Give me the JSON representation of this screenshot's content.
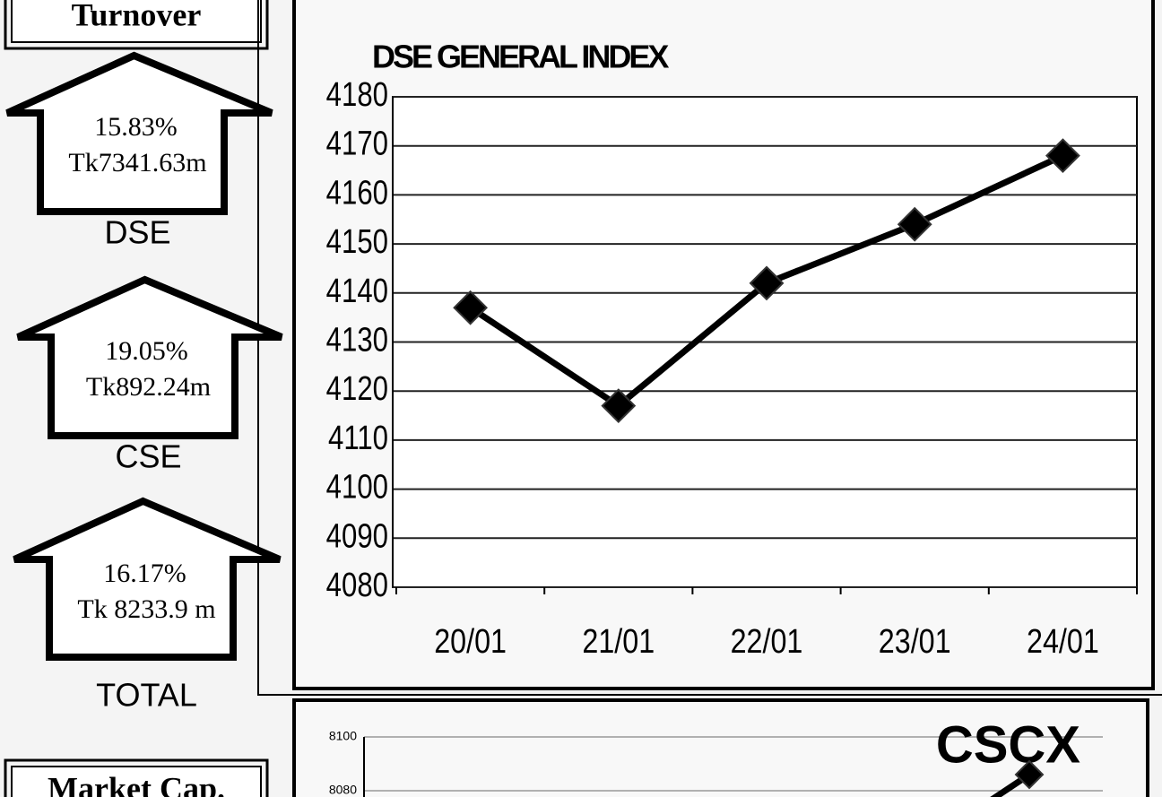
{
  "turnover": {
    "title": "Turnover",
    "items": [
      {
        "percent": "15.83%",
        "amount": "Tk7341.63m",
        "label": "DSE"
      },
      {
        "percent": "19.05%",
        "amount": "Tk892.24m",
        "label": "CSE"
      },
      {
        "percent": "16.17%",
        "amount": "Tk 8233.9 m",
        "label": "TOTAL"
      }
    ],
    "next_heading": "Market Cap."
  },
  "chart_data": [
    {
      "type": "line",
      "title": "DSE GENERAL INDEX",
      "categories": [
        "20/01",
        "21/01",
        "22/01",
        "23/01",
        "24/01"
      ],
      "values": [
        4137,
        4117,
        4142,
        4154,
        4168
      ],
      "color": "#000000",
      "ylim": [
        4080,
        4180
      ],
      "yticks": [
        4080,
        4090,
        4100,
        4110,
        4120,
        4130,
        4140,
        4150,
        4160,
        4170,
        4180
      ],
      "grid": true
    },
    {
      "type": "line",
      "title": "CSCX",
      "categories": [
        null,
        null,
        null,
        null,
        null
      ],
      "values": [
        null,
        null,
        null,
        null,
        8086
      ],
      "color": "#000000",
      "ylim": [
        8080,
        8100
      ],
      "yticks": [
        8080,
        8100
      ],
      "grid": true
    }
  ]
}
